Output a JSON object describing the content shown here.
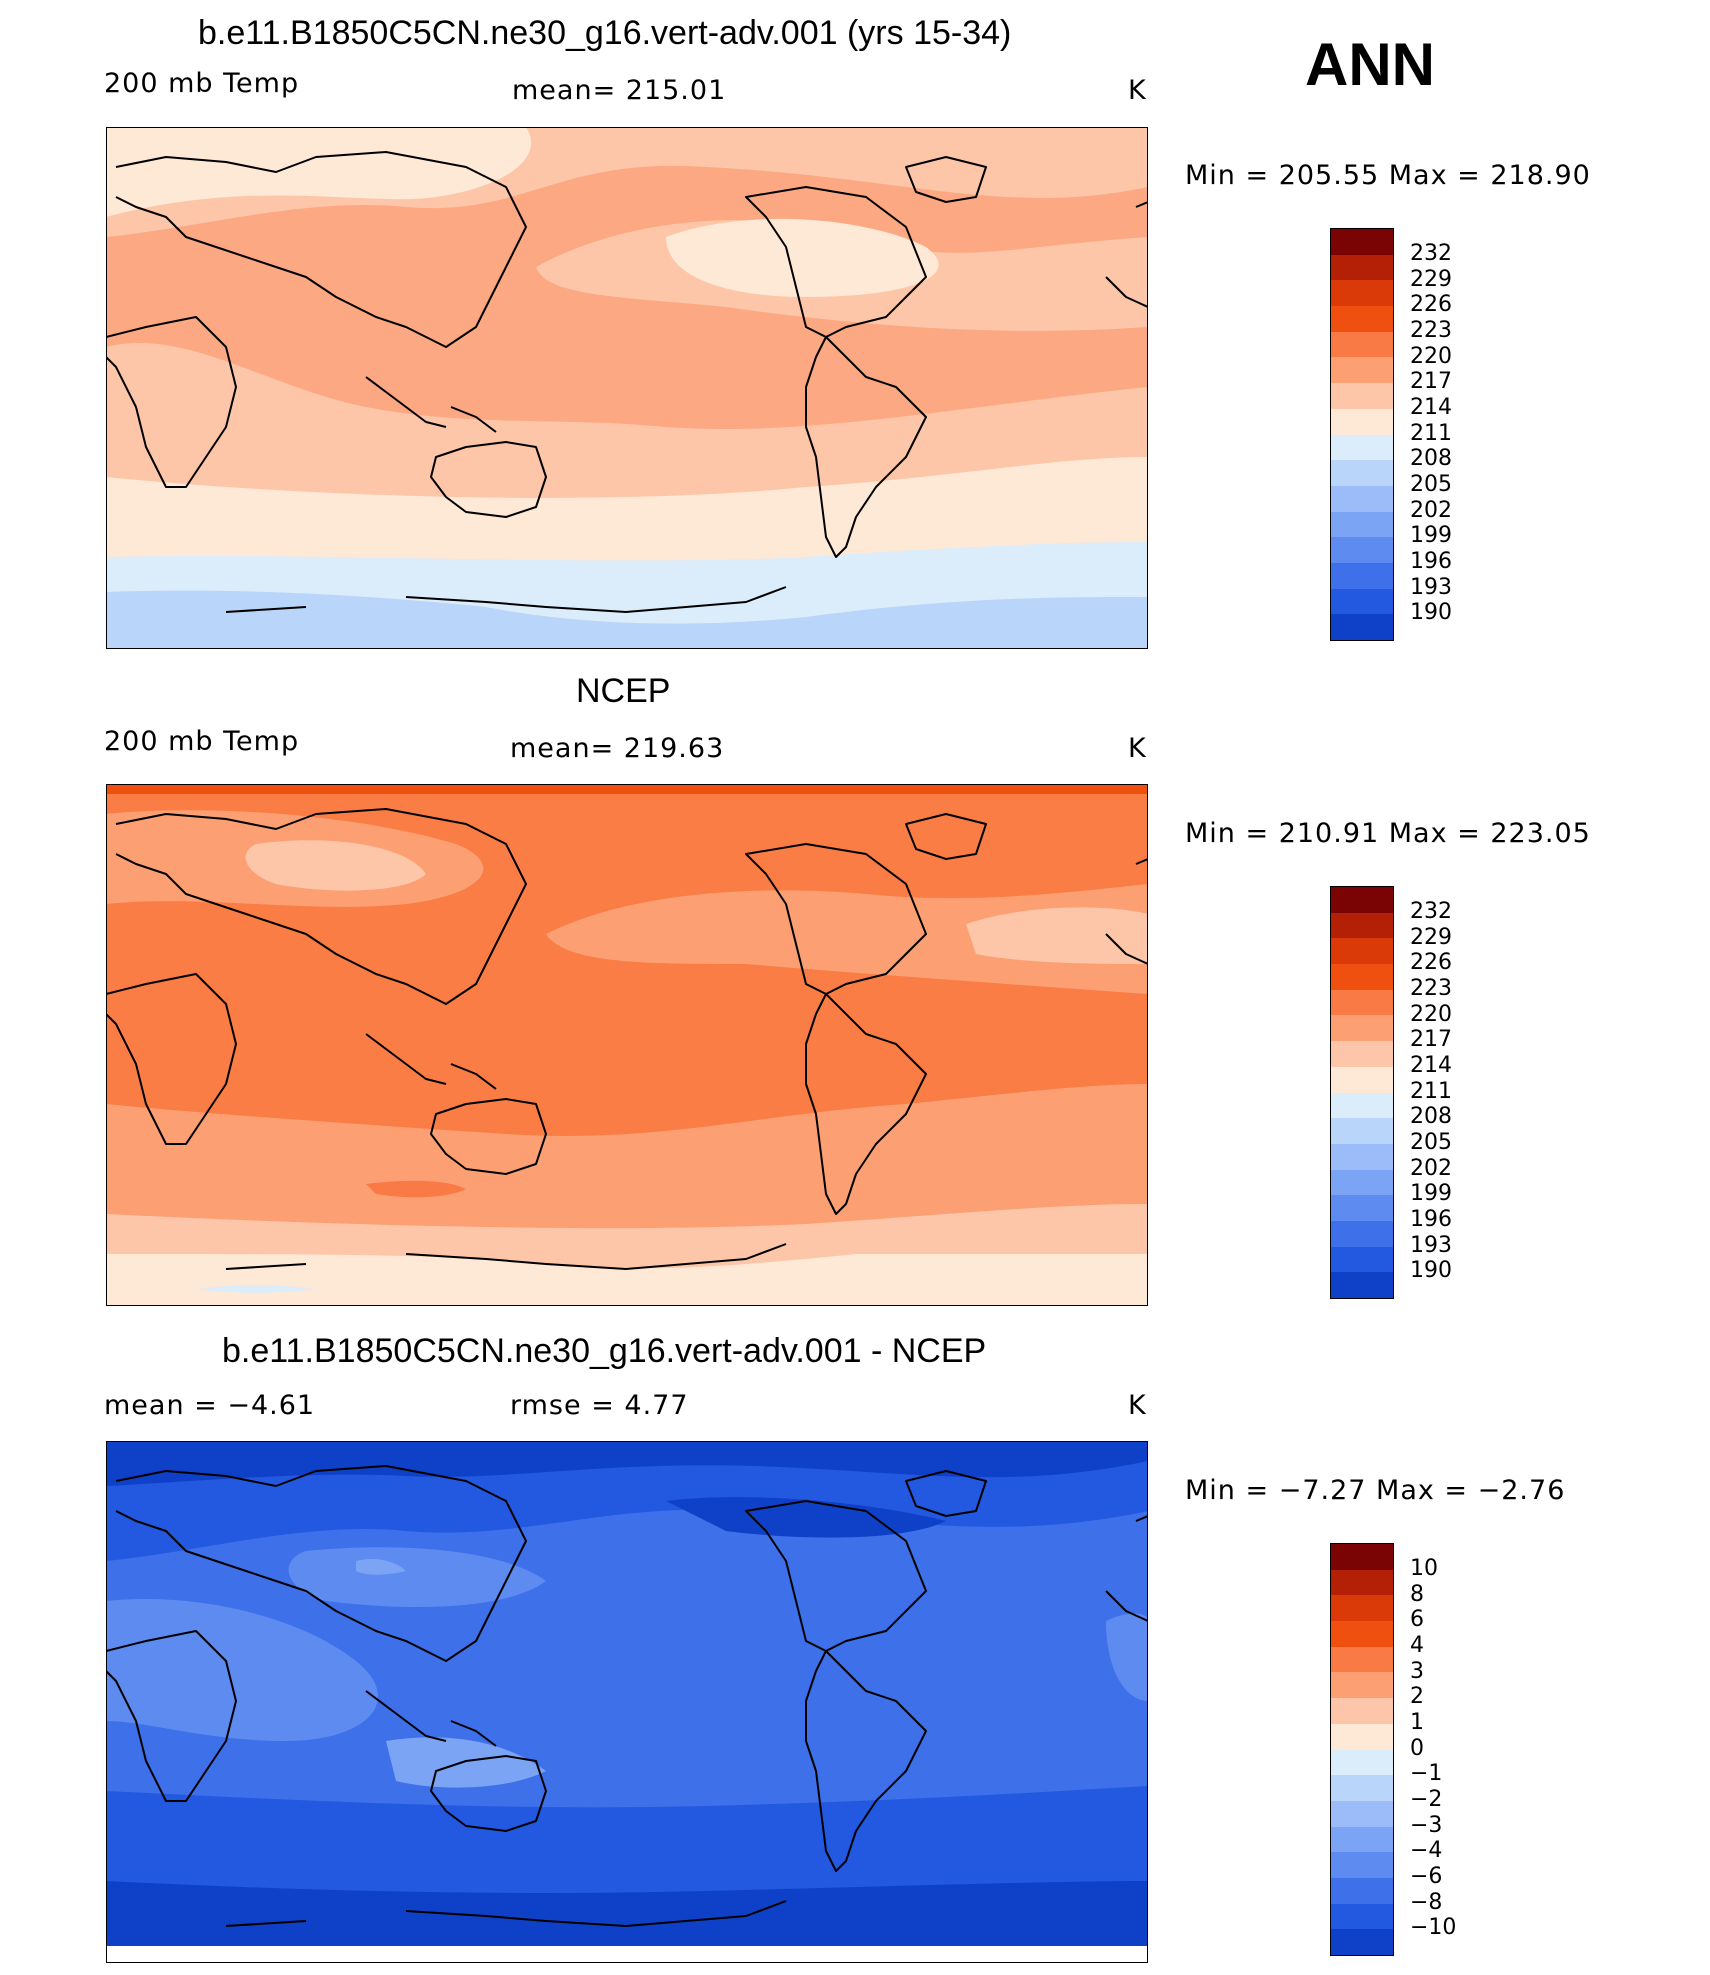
{
  "season": "ANN",
  "colors": {
    "warm": [
      "#7a0403",
      "#b32006",
      "#d93a08",
      "#f0500f",
      "#fa7a45",
      "#fca074",
      "#fdc6a8",
      "#fee8d6"
    ],
    "cool": [
      "#dbecfb",
      "#bad5fa",
      "#9bbcf9",
      "#7ba4f5",
      "#5d8bf0",
      "#3e70ea",
      "#2358e0",
      "#0f40c8",
      "#0727a3",
      "#00137a"
    ],
    "map_bg": {
      "panel1": "#fca882",
      "panel2": "#fa7d45",
      "panel3": "#3e70ea"
    },
    "coast": "#000000"
  },
  "panels": [
    {
      "title": "b.e11.B1850C5CN.ne30_g16.vert-adv.001 (yrs 15-34)",
      "left": "200 mb Temp",
      "center": "mean= 215.01",
      "units": "K",
      "minmax": "Min  =  205.55  Max  =  218.90",
      "colorbar": [
        "232",
        "229",
        "226",
        "223",
        "220",
        "217",
        "214",
        "211",
        "208",
        "205",
        "202",
        "199",
        "196",
        "193",
        "190"
      ]
    },
    {
      "title": "NCEP",
      "left": "200 mb Temp",
      "center": "mean= 219.63",
      "units": "K",
      "minmax": "Min  =  210.91  Max  =  223.05",
      "colorbar": [
        "232",
        "229",
        "226",
        "223",
        "220",
        "217",
        "214",
        "211",
        "208",
        "205",
        "202",
        "199",
        "196",
        "193",
        "190"
      ]
    },
    {
      "title": "b.e11.B1850C5CN.ne30_g16.vert-adv.001 - NCEP",
      "left": "mean  =    −4.61",
      "center": "rmse  =     4.77",
      "units": "K",
      "minmax": "Min  =    −7.27  Max  =    −2.76",
      "colorbar": [
        "10",
        "8",
        "6",
        "4",
        "3",
        "2",
        "1",
        "0",
        "−1",
        "−2",
        "−3",
        "−4",
        "−6",
        "−8",
        "−10"
      ]
    }
  ]
}
